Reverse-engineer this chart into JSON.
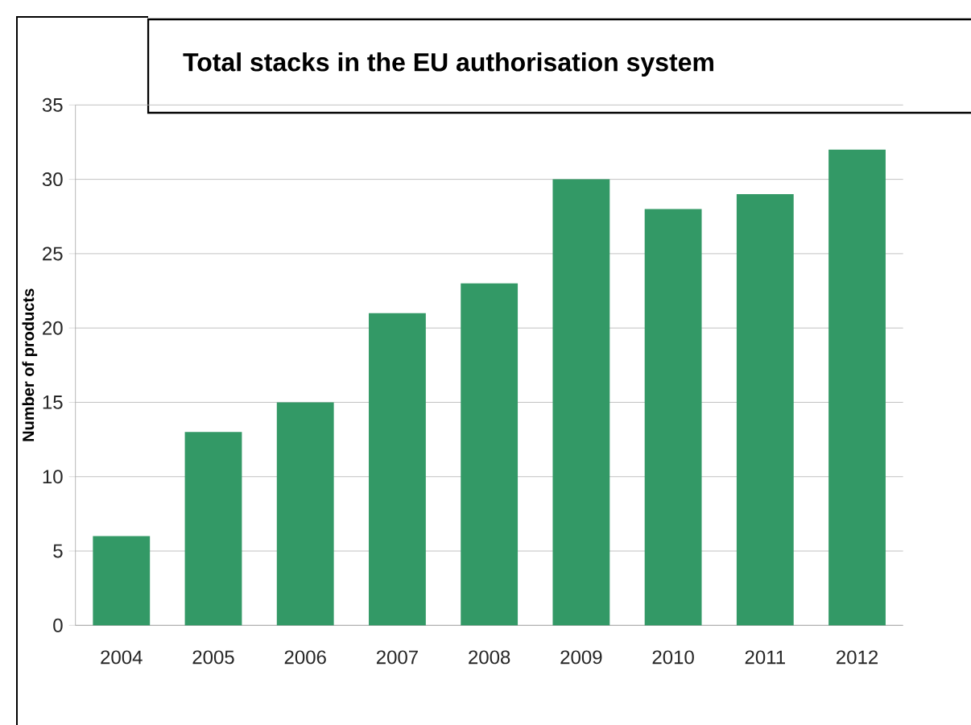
{
  "chart_data": {
    "type": "bar",
    "title": "Total stacks in the EU authorisation system",
    "ylabel": "Number of products",
    "categories": [
      "2004",
      "2005",
      "2006",
      "2007",
      "2008",
      "2009",
      "2010",
      "2011",
      "2012"
    ],
    "values": [
      6,
      13,
      15,
      21,
      23,
      30,
      28,
      29,
      32
    ],
    "color": "#339966",
    "ylim": [
      0,
      35
    ],
    "yticks": [
      0,
      5,
      10,
      15,
      20,
      25,
      30,
      35
    ],
    "grid": "y"
  }
}
